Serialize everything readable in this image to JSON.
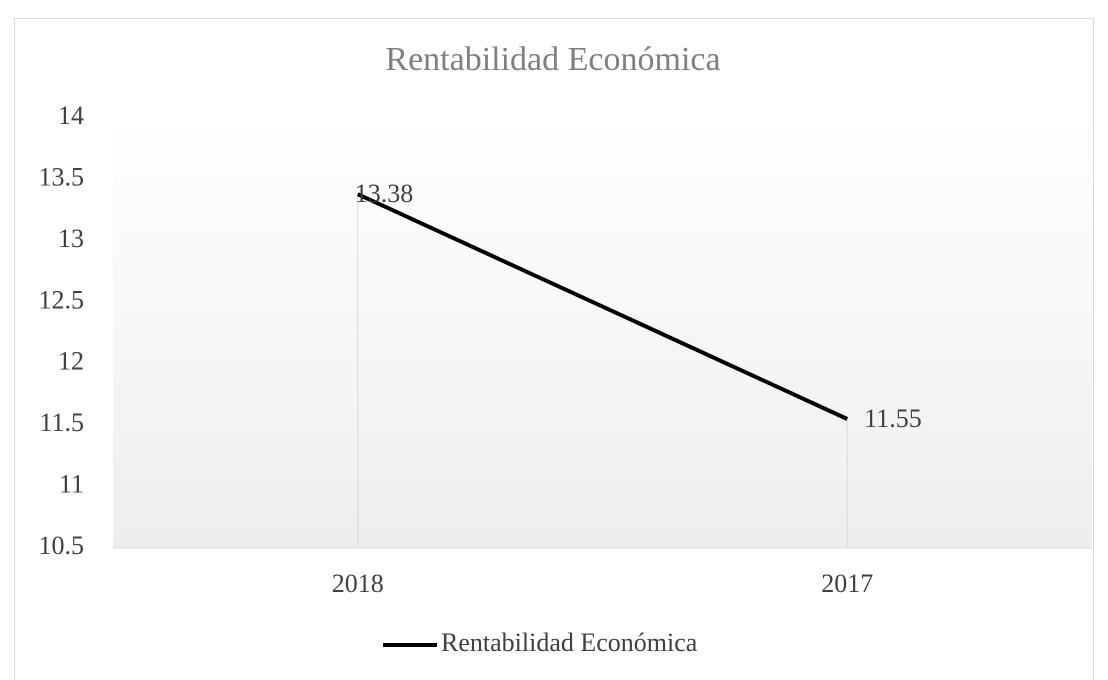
{
  "chart_data": {
    "type": "line",
    "title": "Rentabilidad Económica",
    "categories": [
      "2018",
      "2017"
    ],
    "series": [
      {
        "name": "Rentabilidad Económica",
        "color": "#000000",
        "values": [
          13.38,
          11.55
        ]
      }
    ],
    "ylim": [
      10.5,
      14
    ],
    "yticks": [
      10.5,
      11,
      11.5,
      12,
      12.5,
      13,
      13.5,
      14
    ],
    "drop_lines": true,
    "data_labels": true,
    "legend": "bottom"
  }
}
